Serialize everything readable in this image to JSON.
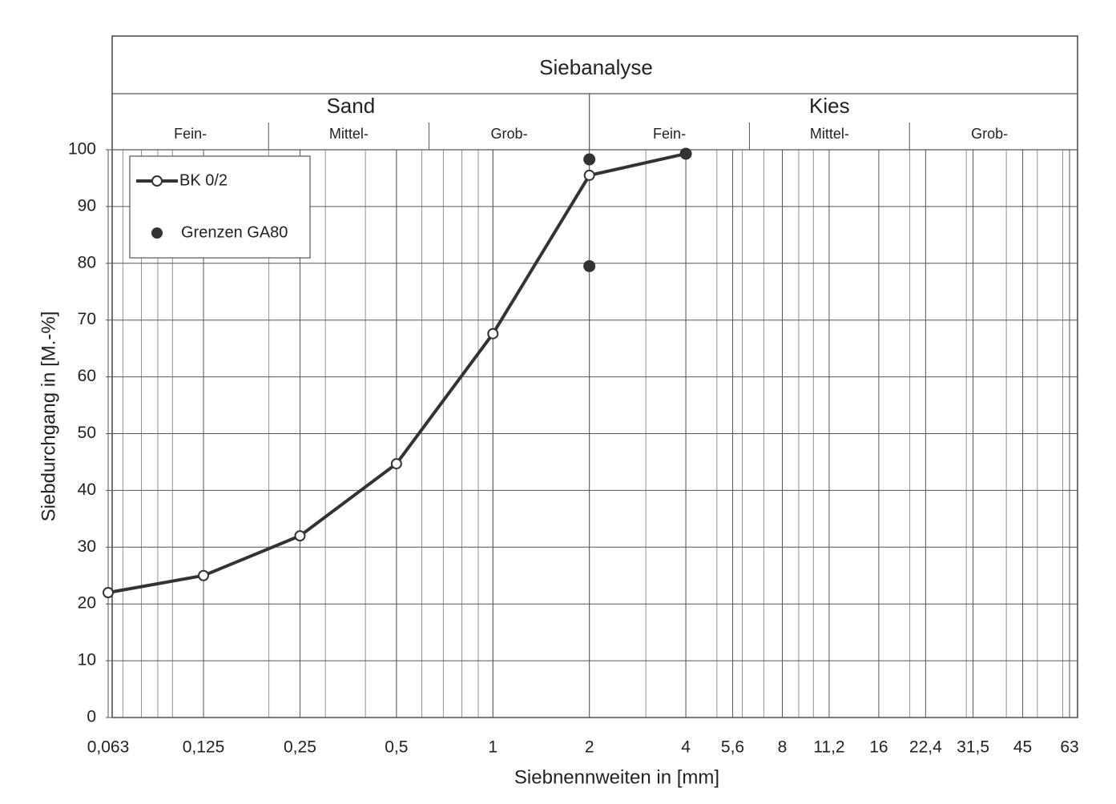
{
  "chart_data": {
    "type": "line",
    "title": "Siebanalyse",
    "groups": [
      {
        "name": "Sand",
        "parts": [
          "Fein-",
          "Mittel-",
          "Grob-"
        ]
      },
      {
        "name": "Kies",
        "parts": [
          "Fein-",
          "Mittel-",
          "Grob-"
        ]
      }
    ],
    "x_label": "Siebnennweiten in [mm]",
    "y_label": "Siebdurchgang in [M.-%]",
    "x_scale": "log",
    "xlim": [
      0.063,
      63
    ],
    "xticks": [
      {
        "value": 0.063,
        "label": "0,063"
      },
      {
        "value": 0.125,
        "label": "0,125"
      },
      {
        "value": 0.25,
        "label": "0,25"
      },
      {
        "value": 0.5,
        "label": "0,5"
      },
      1,
      2,
      4,
      {
        "value": 5.6,
        "label": "5,6"
      },
      8,
      {
        "value": 11.2,
        "label": "11,2"
      },
      16,
      {
        "value": 22.4,
        "label": "22,4"
      },
      {
        "value": 31.5,
        "label": "31,5"
      },
      45,
      63
    ],
    "ylim": [
      0,
      100
    ],
    "yticks": [
      0,
      10,
      20,
      30,
      40,
      50,
      60,
      70,
      80,
      90,
      100
    ],
    "grid": true,
    "minor_grid": true,
    "legend": "upper left",
    "series": [
      {
        "name": "BK 0/2",
        "type": "line",
        "color": "#333333",
        "x": [
          0.063,
          0.125,
          0.25,
          0.5,
          1,
          2,
          4
        ],
        "values": [
          22,
          25,
          32,
          44.7,
          67.6,
          95.5,
          99.3
        ]
      },
      {
        "name": "Grenzen GA80",
        "type": "scatter",
        "color": "#333333",
        "x": [
          2,
          2,
          4
        ],
        "values": [
          98.3,
          79.5,
          99.3
        ]
      }
    ]
  }
}
